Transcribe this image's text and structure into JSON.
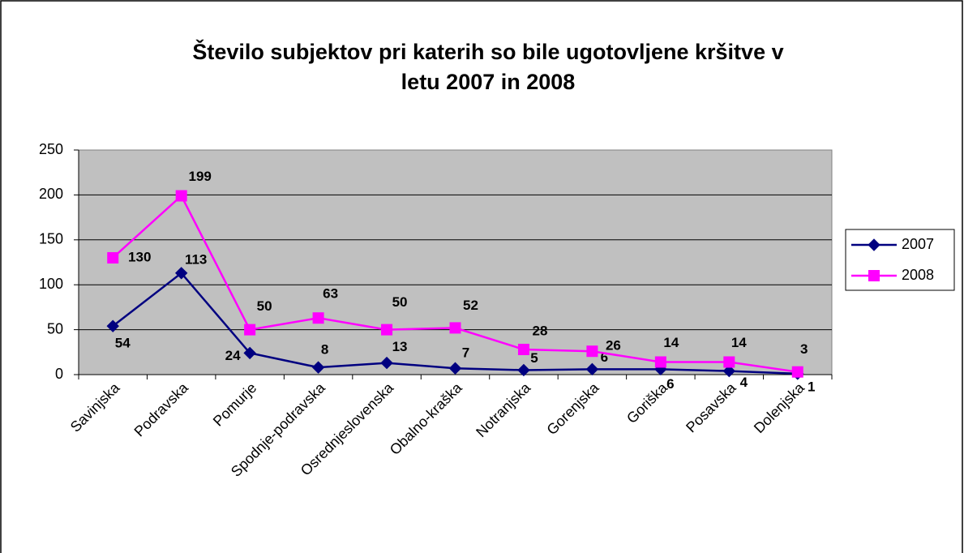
{
  "chart_data": {
    "type": "line",
    "title": [
      "Število subjektov pri katerih so bile ugotovljene kršitve v",
      "letu 2007 in 2008"
    ],
    "categories": [
      "Savinjska",
      "Podravska",
      "Pomurje",
      "Spodnje-podravska",
      "Osrednjeslovenska",
      "Obalno-kraška",
      "Notranjska",
      "Gorenjska",
      "Goriška",
      "Posavska",
      "Dolenjska"
    ],
    "series": [
      {
        "name": "2007",
        "color": "#000080",
        "marker": "diamond",
        "values": [
          54,
          113,
          24,
          8,
          13,
          7,
          5,
          6,
          6,
          4,
          1
        ]
      },
      {
        "name": "2008",
        "color": "#FF00FF",
        "marker": "square",
        "values": [
          130,
          199,
          50,
          63,
          50,
          52,
          28,
          26,
          14,
          14,
          3
        ]
      }
    ],
    "ylim": [
      0,
      250
    ],
    "yticks": [
      0,
      50,
      100,
      150,
      200,
      250
    ],
    "grid": true,
    "legend": "right"
  }
}
